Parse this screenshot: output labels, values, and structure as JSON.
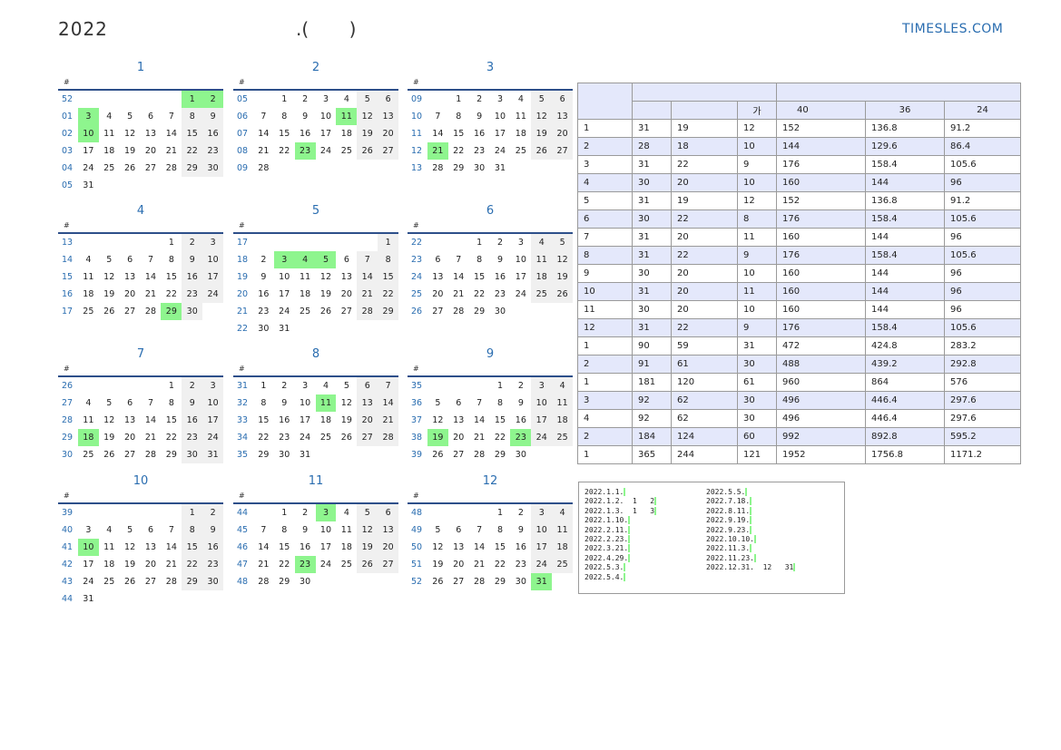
{
  "header": {
    "year": "2022",
    "subtitle": ".(       )",
    "site": "TIMESLES.COM"
  },
  "calendar": {
    "week_header": "#",
    "months": [
      {
        "title": "1",
        "weeks": [
          {
            "w": "52",
            "d": [
              "",
              "",
              "",
              "",
              "",
              "1",
              "2"
            ]
          },
          {
            "w": "01",
            "d": [
              "3",
              "4",
              "5",
              "6",
              "7",
              "8",
              "9"
            ]
          },
          {
            "w": "02",
            "d": [
              "10",
              "11",
              "12",
              "13",
              "14",
              "15",
              "16"
            ]
          },
          {
            "w": "03",
            "d": [
              "17",
              "18",
              "19",
              "20",
              "21",
              "22",
              "23"
            ]
          },
          {
            "w": "04",
            "d": [
              "24",
              "25",
              "26",
              "27",
              "28",
              "29",
              "30"
            ]
          },
          {
            "w": "05",
            "d": [
              "31",
              "",
              "",
              "",
              "",
              "",
              ""
            ]
          }
        ],
        "holidays": [
          "1",
          "2",
          "3",
          "10"
        ]
      },
      {
        "title": "2",
        "weeks": [
          {
            "w": "05",
            "d": [
              "",
              "1",
              "2",
              "3",
              "4",
              "5",
              "6"
            ]
          },
          {
            "w": "06",
            "d": [
              "7",
              "8",
              "9",
              "10",
              "11",
              "12",
              "13"
            ]
          },
          {
            "w": "07",
            "d": [
              "14",
              "15",
              "16",
              "17",
              "18",
              "19",
              "20"
            ]
          },
          {
            "w": "08",
            "d": [
              "21",
              "22",
              "23",
              "24",
              "25",
              "26",
              "27"
            ]
          },
          {
            "w": "09",
            "d": [
              "28",
              "",
              "",
              "",
              "",
              "",
              ""
            ]
          }
        ],
        "holidays": [
          "11",
          "23"
        ]
      },
      {
        "title": "3",
        "weeks": [
          {
            "w": "09",
            "d": [
              "",
              "1",
              "2",
              "3",
              "4",
              "5",
              "6"
            ]
          },
          {
            "w": "10",
            "d": [
              "7",
              "8",
              "9",
              "10",
              "11",
              "12",
              "13"
            ]
          },
          {
            "w": "11",
            "d": [
              "14",
              "15",
              "16",
              "17",
              "18",
              "19",
              "20"
            ]
          },
          {
            "w": "12",
            "d": [
              "21",
              "22",
              "23",
              "24",
              "25",
              "26",
              "27"
            ]
          },
          {
            "w": "13",
            "d": [
              "28",
              "29",
              "30",
              "31",
              "",
              "",
              ""
            ]
          }
        ],
        "holidays": [
          "21"
        ]
      },
      {
        "title": "4",
        "weeks": [
          {
            "w": "13",
            "d": [
              "",
              "",
              "",
              "",
              "1",
              "2",
              "3"
            ]
          },
          {
            "w": "14",
            "d": [
              "4",
              "5",
              "6",
              "7",
              "8",
              "9",
              "10"
            ]
          },
          {
            "w": "15",
            "d": [
              "11",
              "12",
              "13",
              "14",
              "15",
              "16",
              "17"
            ]
          },
          {
            "w": "16",
            "d": [
              "18",
              "19",
              "20",
              "21",
              "22",
              "23",
              "24"
            ]
          },
          {
            "w": "17",
            "d": [
              "25",
              "26",
              "27",
              "28",
              "29",
              "30",
              ""
            ]
          }
        ],
        "holidays": [
          "29"
        ]
      },
      {
        "title": "5",
        "weeks": [
          {
            "w": "17",
            "d": [
              "",
              "",
              "",
              "",
              "",
              "",
              "1"
            ]
          },
          {
            "w": "18",
            "d": [
              "2",
              "3",
              "4",
              "5",
              "6",
              "7",
              "8"
            ]
          },
          {
            "w": "19",
            "d": [
              "9",
              "10",
              "11",
              "12",
              "13",
              "14",
              "15"
            ]
          },
          {
            "w": "20",
            "d": [
              "16",
              "17",
              "18",
              "19",
              "20",
              "21",
              "22"
            ]
          },
          {
            "w": "21",
            "d": [
              "23",
              "24",
              "25",
              "26",
              "27",
              "28",
              "29"
            ]
          },
          {
            "w": "22",
            "d": [
              "30",
              "31",
              "",
              "",
              "",
              "",
              ""
            ]
          }
        ],
        "holidays": [
          "3",
          "4",
          "5"
        ]
      },
      {
        "title": "6",
        "weeks": [
          {
            "w": "22",
            "d": [
              "",
              "",
              "1",
              "2",
              "3",
              "4",
              "5"
            ]
          },
          {
            "w": "23",
            "d": [
              "6",
              "7",
              "8",
              "9",
              "10",
              "11",
              "12"
            ]
          },
          {
            "w": "24",
            "d": [
              "13",
              "14",
              "15",
              "16",
              "17",
              "18",
              "19"
            ]
          },
          {
            "w": "25",
            "d": [
              "20",
              "21",
              "22",
              "23",
              "24",
              "25",
              "26"
            ]
          },
          {
            "w": "26",
            "d": [
              "27",
              "28",
              "29",
              "30",
              "",
              "",
              ""
            ]
          }
        ],
        "holidays": []
      },
      {
        "title": "7",
        "weeks": [
          {
            "w": "26",
            "d": [
              "",
              "",
              "",
              "",
              "1",
              "2",
              "3"
            ]
          },
          {
            "w": "27",
            "d": [
              "4",
              "5",
              "6",
              "7",
              "8",
              "9",
              "10"
            ]
          },
          {
            "w": "28",
            "d": [
              "11",
              "12",
              "13",
              "14",
              "15",
              "16",
              "17"
            ]
          },
          {
            "w": "29",
            "d": [
              "18",
              "19",
              "20",
              "21",
              "22",
              "23",
              "24"
            ]
          },
          {
            "w": "30",
            "d": [
              "25",
              "26",
              "27",
              "28",
              "29",
              "30",
              "31"
            ]
          }
        ],
        "holidays": [
          "18"
        ]
      },
      {
        "title": "8",
        "weeks": [
          {
            "w": "31",
            "d": [
              "1",
              "2",
              "3",
              "4",
              "5",
              "6",
              "7"
            ]
          },
          {
            "w": "32",
            "d": [
              "8",
              "9",
              "10",
              "11",
              "12",
              "13",
              "14"
            ]
          },
          {
            "w": "33",
            "d": [
              "15",
              "16",
              "17",
              "18",
              "19",
              "20",
              "21"
            ]
          },
          {
            "w": "34",
            "d": [
              "22",
              "23",
              "24",
              "25",
              "26",
              "27",
              "28"
            ]
          },
          {
            "w": "35",
            "d": [
              "29",
              "30",
              "31",
              "",
              "",
              "",
              ""
            ]
          }
        ],
        "holidays": [
          "11"
        ]
      },
      {
        "title": "9",
        "weeks": [
          {
            "w": "35",
            "d": [
              "",
              "",
              "",
              "1",
              "2",
              "3",
              "4"
            ]
          },
          {
            "w": "36",
            "d": [
              "5",
              "6",
              "7",
              "8",
              "9",
              "10",
              "11"
            ]
          },
          {
            "w": "37",
            "d": [
              "12",
              "13",
              "14",
              "15",
              "16",
              "17",
              "18"
            ]
          },
          {
            "w": "38",
            "d": [
              "19",
              "20",
              "21",
              "22",
              "23",
              "24",
              "25"
            ]
          },
          {
            "w": "39",
            "d": [
              "26",
              "27",
              "28",
              "29",
              "30",
              "",
              ""
            ]
          }
        ],
        "holidays": [
          "19",
          "23"
        ]
      },
      {
        "title": "10",
        "weeks": [
          {
            "w": "39",
            "d": [
              "",
              "",
              "",
              "",
              "",
              "1",
              "2"
            ]
          },
          {
            "w": "40",
            "d": [
              "3",
              "4",
              "5",
              "6",
              "7",
              "8",
              "9"
            ]
          },
          {
            "w": "41",
            "d": [
              "10",
              "11",
              "12",
              "13",
              "14",
              "15",
              "16"
            ]
          },
          {
            "w": "42",
            "d": [
              "17",
              "18",
              "19",
              "20",
              "21",
              "22",
              "23"
            ]
          },
          {
            "w": "43",
            "d": [
              "24",
              "25",
              "26",
              "27",
              "28",
              "29",
              "30"
            ]
          },
          {
            "w": "44",
            "d": [
              "31",
              "",
              "",
              "",
              "",
              "",
              ""
            ]
          }
        ],
        "holidays": [
          "10"
        ]
      },
      {
        "title": "11",
        "weeks": [
          {
            "w": "44",
            "d": [
              "",
              "1",
              "2",
              "3",
              "4",
              "5",
              "6"
            ]
          },
          {
            "w": "45",
            "d": [
              "7",
              "8",
              "9",
              "10",
              "11",
              "12",
              "13"
            ]
          },
          {
            "w": "46",
            "d": [
              "14",
              "15",
              "16",
              "17",
              "18",
              "19",
              "20"
            ]
          },
          {
            "w": "47",
            "d": [
              "21",
              "22",
              "23",
              "24",
              "25",
              "26",
              "27"
            ]
          },
          {
            "w": "48",
            "d": [
              "28",
              "29",
              "30",
              "",
              "",
              "",
              ""
            ]
          }
        ],
        "holidays": [
          "3",
          "23"
        ]
      },
      {
        "title": "12",
        "weeks": [
          {
            "w": "48",
            "d": [
              "",
              "",
              "",
              "1",
              "2",
              "3",
              "4"
            ]
          },
          {
            "w": "49",
            "d": [
              "5",
              "6",
              "7",
              "8",
              "9",
              "10",
              "11"
            ]
          },
          {
            "w": "50",
            "d": [
              "12",
              "13",
              "14",
              "15",
              "16",
              "17",
              "18"
            ]
          },
          {
            "w": "51",
            "d": [
              "19",
              "20",
              "21",
              "22",
              "23",
              "24",
              "25"
            ]
          },
          {
            "w": "52",
            "d": [
              "26",
              "27",
              "28",
              "29",
              "30",
              "31",
              ""
            ]
          }
        ],
        "holidays": [
          "31"
        ]
      }
    ]
  },
  "stats": {
    "sub_headers": [
      "",
      "",
      "가",
      "40",
      "36",
      "24"
    ],
    "rows": [
      [
        "1",
        "31",
        "19",
        "12",
        "152",
        "136.8",
        "91.2"
      ],
      [
        "2",
        "28",
        "18",
        "10",
        "144",
        "129.6",
        "86.4"
      ],
      [
        "3",
        "31",
        "22",
        "9",
        "176",
        "158.4",
        "105.6"
      ],
      [
        "4",
        "30",
        "20",
        "10",
        "160",
        "144",
        "96"
      ],
      [
        "5",
        "31",
        "19",
        "12",
        "152",
        "136.8",
        "91.2"
      ],
      [
        "6",
        "30",
        "22",
        "8",
        "176",
        "158.4",
        "105.6"
      ],
      [
        "7",
        "31",
        "20",
        "11",
        "160",
        "144",
        "96"
      ],
      [
        "8",
        "31",
        "22",
        "9",
        "176",
        "158.4",
        "105.6"
      ],
      [
        "9",
        "30",
        "20",
        "10",
        "160",
        "144",
        "96"
      ],
      [
        "10",
        "31",
        "20",
        "11",
        "160",
        "144",
        "96"
      ],
      [
        "11",
        "30",
        "20",
        "10",
        "160",
        "144",
        "96"
      ],
      [
        "12",
        "31",
        "22",
        "9",
        "176",
        "158.4",
        "105.6"
      ],
      [
        "1",
        "90",
        "59",
        "31",
        "472",
        "424.8",
        "283.2"
      ],
      [
        "2",
        "91",
        "61",
        "30",
        "488",
        "439.2",
        "292.8"
      ],
      [
        "1",
        "181",
        "120",
        "61",
        "960",
        "864",
        "576"
      ],
      [
        "3",
        "92",
        "62",
        "30",
        "496",
        "446.4",
        "297.6"
      ],
      [
        "4",
        "92",
        "62",
        "30",
        "496",
        "446.4",
        "297.6"
      ],
      [
        "2",
        "184",
        "124",
        "60",
        "992",
        "892.8",
        "595.2"
      ],
      [
        "1",
        "365",
        "244",
        "121",
        "1952",
        "1756.8",
        "1171.2"
      ]
    ]
  },
  "holiday_list": {
    "left": [
      "2022.1.1.",
      "2022.1.2.  1   2",
      "2022.1.3.  1   3",
      "2022.1.10.",
      "2022.2.11.",
      "2022.2.23.",
      "2022.3.21.",
      "2022.4.29.",
      "2022.5.3.",
      "2022.5.4."
    ],
    "right": [
      "2022.5.5.",
      "2022.7.18.",
      "2022.8.11.",
      "2022.9.19.",
      "2022.9.23.",
      "2022.10.10.",
      "2022.11.3.",
      "2022.11.23.",
      "2022.12.31.  12   31"
    ],
    "marker_color": "#8ef58e"
  }
}
